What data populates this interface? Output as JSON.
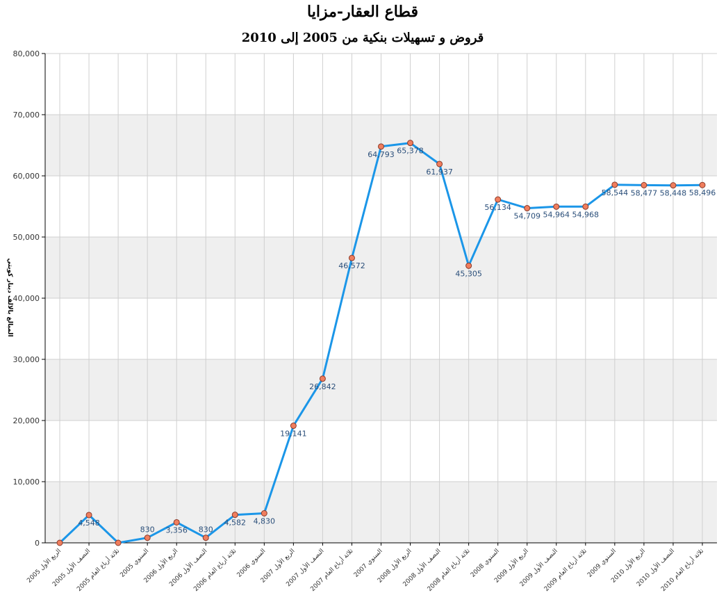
{
  "chart_data": {
    "type": "line",
    "title": "قطاع العقار-مزايا",
    "subtitle": "قروض و تسهيلات بنكية من 2005 إلى 2010",
    "ylabel": "المبالغ بالالف دينار كويتي",
    "xlabel": "",
    "ylim": [
      0,
      80000
    ],
    "yticks": [
      0,
      10000,
      20000,
      30000,
      40000,
      50000,
      60000,
      70000,
      80000
    ],
    "ytick_labels": [
      "0",
      "10,000",
      "20,000",
      "30,000",
      "40,000",
      "50,000",
      "60,000",
      "70,000",
      "80,000"
    ],
    "grid": true,
    "legend": "none",
    "colors": {
      "line": "#1b96e8",
      "marker_fill": "#f07e5e",
      "marker_stroke": "#8b3a2a",
      "band": "#efefef",
      "grid": "#cfcfcf"
    },
    "categories": [
      "الربع الأول 2005",
      "النصف الأول 2005",
      "ثلاثة أرباع العام 2005",
      "السنوي 2005",
      "الربع الأول 2006",
      "النصف الأول 2006",
      "ثلاثة أرباع العام 2006",
      "السنوي 2006",
      "الربع الأول 2007",
      "النصف الأول 2007",
      "ثلاثة أرباع العام 2007",
      "السنوي 2007",
      "الربع الأول 2008",
      "النصف الأول 2008",
      "ثلاثة أرباع العام 2008",
      "السنوي 2008",
      "الربع الأول 2009",
      "النصف الأول 2009",
      "ثلاثة أرباع العام 2009",
      "السنوي 2009",
      "الربع الأول 2010",
      "النصف الأول 2010",
      "ثلاثة أرباع العام 2010"
    ],
    "values": [
      0,
      4548,
      0,
      830,
      3356,
      830,
      4582,
      4830,
      19141,
      26842,
      46572,
      64793,
      65378,
      61937,
      45305,
      56134,
      54709,
      54964,
      54968,
      58544,
      58477,
      58448,
      58496
    ],
    "data_labels": [
      "",
      "4,548",
      "",
      "830",
      "3,356",
      "830",
      "4,582",
      "4,830",
      "19,141",
      "26,842",
      "46,572",
      "64,793",
      "65,378",
      "61,937",
      "45,305",
      "56,134",
      "54,709",
      "54,964",
      "54,968",
      "58,544",
      "58,477",
      "58,448",
      "58,496"
    ]
  }
}
